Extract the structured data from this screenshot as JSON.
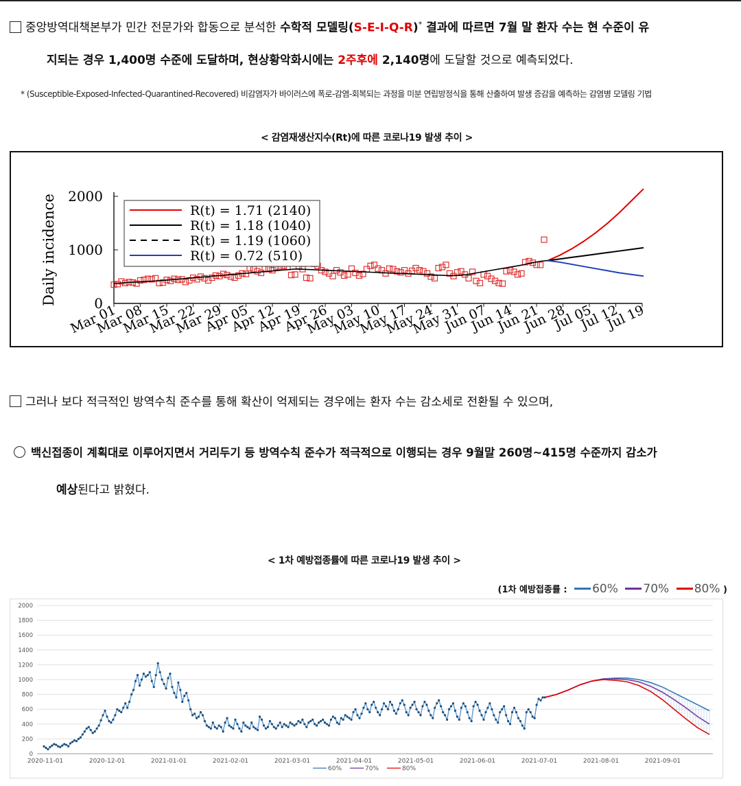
{
  "paragraph1": {
    "line1_prefix": "중앙방역대책본부가 민간 전문가와 합동으로 분석한 ",
    "line1_bold1": "수학적 모델링(",
    "line1_red": "S-E-I-Q-R",
    "line1_bold2": ")",
    "footnote_mark": "*",
    "line1_rest": " 결과에 따르면 7월 말 환자 수는 현 수준이 유",
    "line2_bold1": "지되는 경우 1,400명 수준에 도달하며, 현상황악화시에는 ",
    "line2_red": "2주후에",
    "line2_bold2": " 2,140명",
    "line2_rest": "에 도달할 것으로 예측되었다."
  },
  "footnote": "* (Susceptible-Exposed-Infected-Quarantined-Recovered) 비감염자가 바이러스에 폭로-감염-회복되는 과정을 미분 연립방정식을 통해 산출하여 발생 증감을 예측하는 감염병 모델링 기법",
  "chart1_caption": "< 감염재생산지수(Rt)에 따른 코로나19 발생 추이 >",
  "paragraph2": "그러나 보다 적극적인 방역수칙 준수를 통해 확산이 억제되는 경우에는 환자 수는 감소세로 전환될 수 있으며,",
  "paragraph3": {
    "line1_bold": "백신접종이 계획대로 이루어지면서 거리두기 등 방역수칙 준수가 적극적으로 이행되는 경우 9월말 260명~415명 수준까지 감소가",
    "line2_bold": "예상",
    "line2_rest": "된다고 밝혔다."
  },
  "chart2_caption": "< 1차 예방접종률에 따른 코로나19 발생 추이 >",
  "chart2_legend": {
    "prefix": "(1차 예방접종률 :",
    "items": [
      {
        "label": "60%",
        "color": "#2e75b6"
      },
      {
        "label": "70%",
        "color": "#7030a0"
      },
      {
        "label": "80%",
        "color": "#e00000"
      }
    ],
    "suffix": ")"
  },
  "chart_data": [
    {
      "type": "line",
      "title": "",
      "ylabel": "Daily incidence",
      "xlabel": "",
      "ylim": [
        0,
        2000
      ],
      "yticks": [
        0,
        1000,
        2000
      ],
      "x_tick_labels": [
        "Mar 01",
        "Mar 08",
        "Mar 15",
        "Mar 22",
        "Mar 29",
        "Apr 05",
        "Apr 12",
        "Apr 19",
        "Apr 26",
        "May 03",
        "May 10",
        "May 17",
        "May 24",
        "May 31",
        "Jun 07",
        "Jun 14",
        "Jun 21",
        "Jun 28",
        "Jul 05",
        "Jul 12",
        "Jul 19"
      ],
      "legend": [
        {
          "label": "R(t) = 1.71 (2140)",
          "color": "#e00000",
          "style": "solid"
        },
        {
          "label": "R(t) = 1.18 (1040)",
          "color": "#000000",
          "style": "solid"
        },
        {
          "label": "R(t) = 1.19 (1060)",
          "color": "#000000",
          "style": "dashed"
        },
        {
          "label": "R(t) = 0.72 (510)",
          "color": "#1f3fbf",
          "style": "solid"
        }
      ],
      "observed": [
        350,
        360,
        410,
        380,
        400,
        390,
        370,
        430,
        440,
        460,
        450,
        470,
        380,
        390,
        440,
        420,
        460,
        440,
        450,
        400,
        430,
        480,
        450,
        500,
        470,
        430,
        480,
        520,
        510,
        550,
        530,
        500,
        480,
        520,
        560,
        550,
        660,
        640,
        600,
        570,
        650,
        640,
        620,
        680,
        690,
        700,
        680,
        530,
        540,
        700,
        640,
        480,
        470,
        740,
        700,
        620,
        590,
        560,
        510,
        620,
        580,
        520,
        540,
        650,
        570,
        520,
        550,
        640,
        700,
        720,
        650,
        620,
        560,
        650,
        640,
        600,
        580,
        620,
        560,
        610,
        660,
        620,
        600,
        560,
        500,
        470,
        660,
        680,
        720,
        560,
        510,
        580,
        600,
        540,
        470,
        590,
        420,
        380,
        540,
        510,
        460,
        420,
        380,
        370,
        600,
        620,
        590,
        540,
        560,
        770,
        790,
        760,
        720,
        720,
        1190
      ],
      "fit_line": [
        370,
        380,
        390,
        395,
        400,
        410,
        415,
        420,
        430,
        440,
        450,
        460,
        470,
        480,
        490,
        500,
        510,
        520,
        530,
        540,
        550,
        560,
        570,
        580,
        590,
        600,
        610,
        620,
        630,
        640,
        640,
        635,
        630,
        625,
        620,
        615,
        610,
        605,
        600,
        595,
        590,
        585,
        580,
        575,
        570,
        565,
        560,
        555,
        550,
        545,
        540,
        535,
        530,
        525,
        520,
        520,
        525,
        540,
        560,
        580,
        600,
        620,
        640,
        660,
        680,
        700,
        720,
        750,
        770,
        790,
        800
      ],
      "projections": {
        "R1.71": [
          800,
          900,
          1020,
          1160,
          1320,
          1500,
          1700,
          1920,
          2140
        ],
        "R1.18": [
          800,
          830,
          860,
          890,
          920,
          950,
          980,
          1010,
          1040
        ],
        "R0.72": [
          800,
          770,
          730,
          690,
          650,
          610,
          570,
          540,
          510
        ]
      }
    },
    {
      "type": "line",
      "title": "",
      "ylim": [
        0,
        2000
      ],
      "yticks": [
        0,
        200,
        400,
        600,
        800,
        1000,
        1200,
        1400,
        1600,
        1800,
        2000
      ],
      "x_tick_labels": [
        "2020-11-01",
        "2020-12-01",
        "2021-01-01",
        "2021-02-01",
        "2021-03-01",
        "2021-04-01",
        "2021-05-01",
        "2021-06-01",
        "2021-07-01",
        "2021-08-01",
        "2021-09-01"
      ],
      "observed": [
        100,
        80,
        60,
        90,
        110,
        130,
        120,
        100,
        90,
        110,
        130,
        120,
        100,
        140,
        160,
        180,
        170,
        200,
        220,
        260,
        300,
        340,
        360,
        320,
        280,
        300,
        340,
        380,
        450,
        520,
        580,
        500,
        440,
        420,
        460,
        520,
        600,
        580,
        560,
        620,
        680,
        620,
        700,
        800,
        860,
        980,
        1060,
        920,
        1000,
        1080,
        1040,
        1060,
        1100,
        980,
        900,
        1060,
        1220,
        1100,
        1000,
        940,
        880,
        1020,
        1080,
        900,
        820,
        760,
        960,
        860,
        700,
        780,
        820,
        720,
        600,
        520,
        540,
        480,
        500,
        560,
        520,
        440,
        380,
        360,
        340,
        420,
        360,
        340,
        380,
        360,
        300,
        420,
        480,
        380,
        360,
        340,
        460,
        400,
        340,
        300,
        420,
        380,
        360,
        340,
        420,
        360,
        340,
        320,
        500,
        460,
        380,
        340,
        360,
        440,
        400,
        360,
        340,
        380,
        420,
        360,
        400,
        380,
        360,
        420,
        400,
        380,
        400,
        440,
        420,
        460,
        400,
        360,
        420,
        440,
        460,
        400,
        380,
        420,
        440,
        460,
        420,
        400,
        380,
        460,
        500,
        480,
        420,
        400,
        480,
        460,
        520,
        500,
        480,
        460,
        560,
        600,
        520,
        480,
        540,
        620,
        680,
        600,
        560,
        660,
        700,
        620,
        560,
        520,
        600,
        680,
        640,
        600,
        700,
        660,
        580,
        540,
        600,
        680,
        720,
        660,
        560,
        520,
        620,
        660,
        700,
        600,
        560,
        520,
        640,
        700,
        660,
        580,
        520,
        480,
        620,
        680,
        720,
        640,
        560,
        520,
        460,
        600,
        640,
        680,
        580,
        500,
        460,
        620,
        680,
        640,
        560,
        480,
        440,
        640,
        700,
        660,
        580,
        520,
        460,
        560,
        620,
        680,
        600,
        520,
        460,
        420,
        560,
        600,
        640,
        520,
        440,
        400,
        560,
        620,
        560,
        480,
        440,
        380,
        340,
        560,
        600,
        560,
        500,
        480,
        660,
        740,
        720,
        760,
        760
      ],
      "series": [
        {
          "name": "60%",
          "color": "#2e75b6",
          "values": [
            760,
            800,
            860,
            930,
            980,
            1010,
            1020,
            1020,
            1000,
            960,
            900,
            820,
            740,
            660,
            580
          ]
        },
        {
          "name": "70%",
          "color": "#7030a0",
          "values": [
            760,
            800,
            860,
            930,
            980,
            1010,
            1010,
            1000,
            970,
            910,
            830,
            730,
            620,
            500,
            400
          ]
        },
        {
          "name": "80%",
          "color": "#e00000",
          "values": [
            760,
            800,
            860,
            930,
            980,
            1000,
            990,
            970,
            920,
            840,
            730,
            600,
            470,
            350,
            260
          ]
        }
      ]
    }
  ]
}
